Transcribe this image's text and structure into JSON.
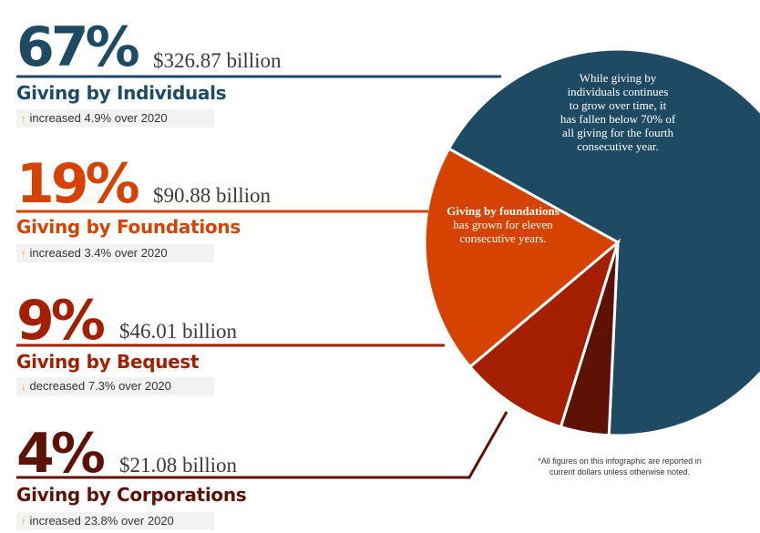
{
  "colors": {
    "individuals": "#1f4a63",
    "foundations": "#d64300",
    "bequest": "#a31f00",
    "corporations": "#5e1206",
    "arrow": "#f5a800"
  },
  "chart_data": {
    "type": "pie",
    "unit": "percent of all giving",
    "slices": [
      {
        "label": "Giving by Individuals",
        "percent": 67,
        "amount": "$326.87 billion",
        "change": "increased 4.9% over 2020",
        "direction": "up"
      },
      {
        "label": "Giving by Foundations",
        "percent": 19,
        "amount": "$90.88 billion",
        "change": "increased 3.4% over 2020",
        "direction": "up"
      },
      {
        "label": "Giving by Bequest",
        "percent": 9,
        "amount": "$46.01 billion",
        "change": "decreased 7.3% over 2020",
        "direction": "down"
      },
      {
        "label": "Giving by Corporations",
        "percent": 4,
        "amount": "$21.08 billion",
        "change": "increased 23.8% over 2020",
        "direction": "up"
      }
    ]
  },
  "rows": [
    {
      "pct": "67%",
      "amount": "$326.87 billion",
      "category": "Giving by Individuals",
      "change": "increased 4.9% over 2020",
      "arrow": "↑"
    },
    {
      "pct": "19%",
      "amount": "$90.88 billion",
      "category": "Giving by Foundations",
      "change": "increased 3.4% over 2020",
      "arrow": "↑"
    },
    {
      "pct": "9%",
      "amount": "$46.01 billion",
      "category": "Giving by Bequest",
      "change": "decreased 7.3% over 2020",
      "arrow": "↓"
    },
    {
      "pct": "4%",
      "amount": "$21.08 billion",
      "category": "Giving by Corporations",
      "change": "increased 23.8% over 2020",
      "arrow": "↑"
    }
  ],
  "notes": {
    "individuals": [
      "While giving by",
      "individuals continues",
      "to grow over time, it",
      "has fallen below 70% of",
      "all giving for the fourth",
      "consecutive year."
    ],
    "foundations_bold": "Giving by foundations",
    "foundations": [
      "has grown for eleven",
      "consecutive years."
    ]
  },
  "footnote": {
    "line1": "*All figures on this infographic are reported in",
    "line2": "current dollars unless otherwise noted."
  }
}
